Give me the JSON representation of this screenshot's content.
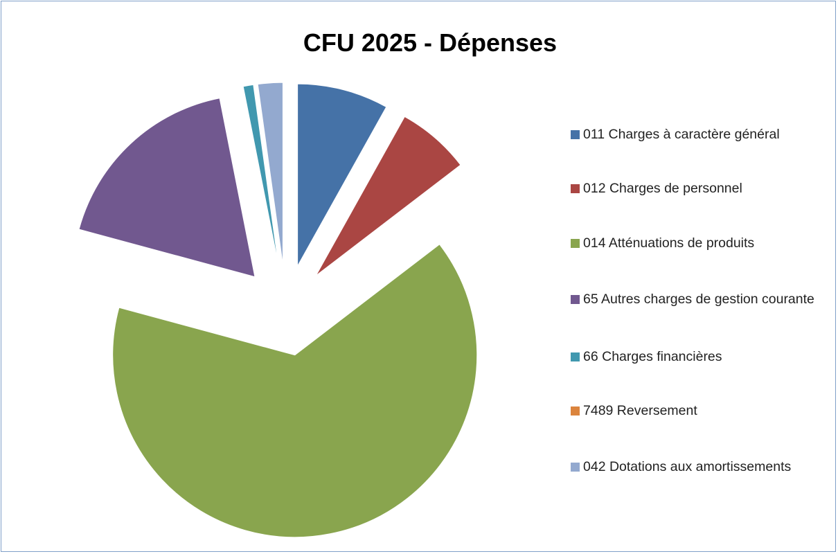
{
  "chart_data": {
    "type": "pie",
    "title": "CFU 2025 - Dépenses",
    "categories": [
      "011 Charges à caractère général",
      "012 Charges de personnel",
      "014 Atténuations de produits",
      "65 Autres charges de gestion courante",
      "66 Charges financières",
      "7489 Reversement",
      "042 Dotations aux amortissements"
    ],
    "values": [
      8.1,
      6.5,
      64.6,
      17.7,
      0.9,
      0,
      2.2
    ],
    "colors": [
      "#4572a7",
      "#aa4643",
      "#89a54e",
      "#71588f",
      "#4198af",
      "#db843d",
      "#93a9cf"
    ],
    "exploded": true,
    "legend": "right"
  }
}
